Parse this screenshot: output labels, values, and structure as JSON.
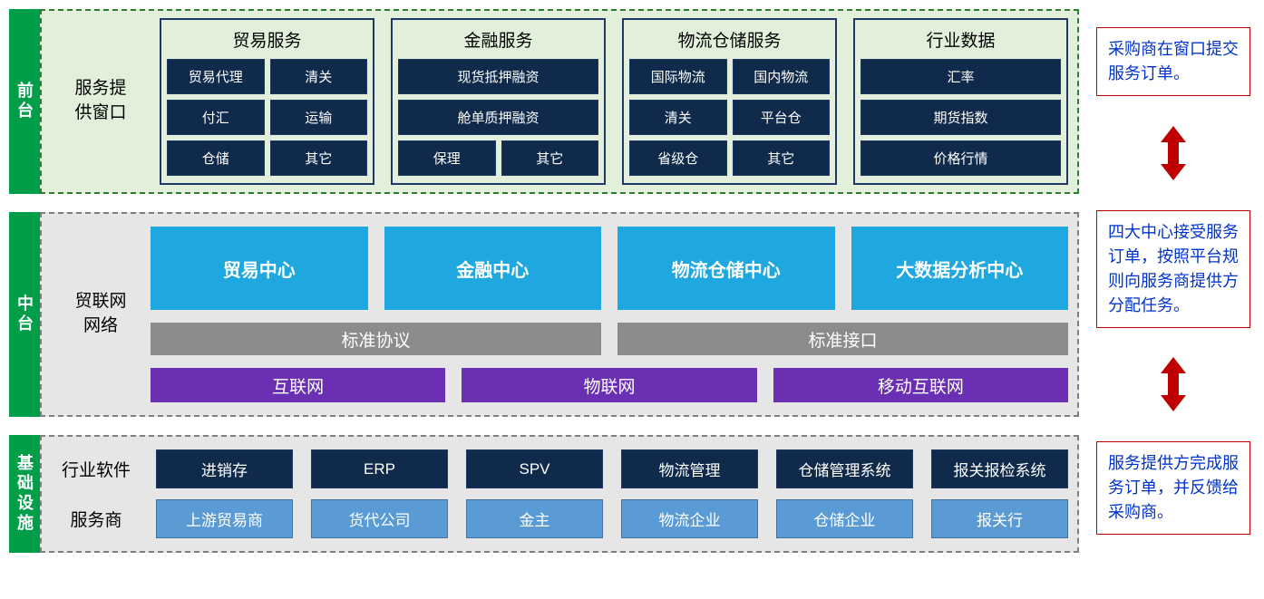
{
  "colors": {
    "tag_green": "#009e49",
    "svc_item_bg": "#0f2a4a",
    "svc_item_border": "#203864",
    "center_bg": "#1fa8df",
    "std_bg": "#8c8c8c",
    "net_bg": "#6b2fb3",
    "bot_blue": "#5b9bd5",
    "ann_border": "#c00000",
    "ann_text": "#0033cc",
    "arrow_fill": "#c00000"
  },
  "layers": {
    "front": {
      "tag": "前台",
      "label": "服务提\n供窗口",
      "groups": [
        {
          "title": "贸易服务",
          "items": [
            {
              "t": "贸易代理",
              "w": "half"
            },
            {
              "t": "清关",
              "w": "half"
            },
            {
              "t": "付汇",
              "w": "half"
            },
            {
              "t": "运输",
              "w": "half"
            },
            {
              "t": "仓储",
              "w": "half"
            },
            {
              "t": "其它",
              "w": "half"
            }
          ]
        },
        {
          "title": "金融服务",
          "items": [
            {
              "t": "现货抵押融资",
              "w": "full"
            },
            {
              "t": "舱单质押融资",
              "w": "full"
            },
            {
              "t": "保理",
              "w": "half"
            },
            {
              "t": "其它",
              "w": "half"
            }
          ]
        },
        {
          "title": "物流仓储服务",
          "items": [
            {
              "t": "国际物流",
              "w": "half"
            },
            {
              "t": "国内物流",
              "w": "half"
            },
            {
              "t": "清关",
              "w": "half"
            },
            {
              "t": "平台仓",
              "w": "half"
            },
            {
              "t": "省级仓",
              "w": "half"
            },
            {
              "t": "其它",
              "w": "half"
            }
          ]
        },
        {
          "title": "行业数据",
          "items": [
            {
              "t": "汇率",
              "w": "full"
            },
            {
              "t": "期货指数",
              "w": "full"
            },
            {
              "t": "价格行情",
              "w": "full"
            }
          ]
        }
      ]
    },
    "middle": {
      "tag": "中台",
      "label": "贸联网\n网络",
      "centers": [
        "贸易中心",
        "金融中心",
        "物流仓储中心",
        "大数据分析中心"
      ],
      "standards": [
        "标准协议",
        "标准接口"
      ],
      "nets": [
        "互联网",
        "物联网",
        "移动互联网"
      ]
    },
    "bottom": {
      "tag": "基础设施",
      "rows": [
        {
          "label": "行业软件",
          "style": "dark",
          "items": [
            "进销存",
            "ERP",
            "SPV",
            "物流管理",
            "仓储管理系统",
            "报关报检系统"
          ]
        },
        {
          "label": "服务商",
          "style": "blue",
          "items": [
            "上游贸易商",
            "货代公司",
            "金主",
            "物流企业",
            "仓储企业",
            "报关行"
          ]
        }
      ]
    }
  },
  "annotations": {
    "a1": "采购商在窗口提交服务订单。",
    "a2": "四大中心接受服务订单，按照平台规则向服务商提供方分配任务。",
    "a3": "服务提供方完成服务订单，并反馈给采购商。"
  }
}
